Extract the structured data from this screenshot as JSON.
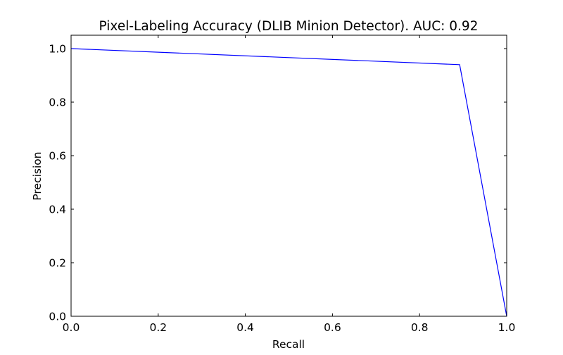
{
  "chart_data": {
    "type": "line",
    "title": "Pixel-Labeling Accuracy (DLIB Minion Detector). AUC: 0.92",
    "xlabel": "Recall",
    "ylabel": "Precision",
    "xlim": [
      0.0,
      1.0
    ],
    "ylim": [
      0.0,
      1.05
    ],
    "xticks": [
      0.0,
      0.2,
      0.4,
      0.6,
      0.8,
      1.0
    ],
    "xtick_labels": [
      "0.0",
      "0.2",
      "0.4",
      "0.6",
      "0.8",
      "1.0"
    ],
    "yticks": [
      0.0,
      0.2,
      0.4,
      0.6,
      0.8,
      1.0
    ],
    "ytick_labels": [
      "0.0",
      "0.2",
      "0.4",
      "0.6",
      "0.8",
      "1.0"
    ],
    "grid": false,
    "series": [
      {
        "color": "#0000ff",
        "x": [
          0.0,
          0.892,
          1.0
        ],
        "y": [
          1.0,
          0.94,
          0.0
        ]
      }
    ]
  }
}
